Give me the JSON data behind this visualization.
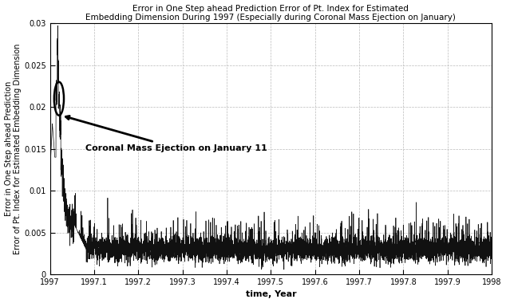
{
  "title_line1": "Error in One Step ahead Prediction Error of Pt. Index for Estimated",
  "title_line2": "Embedding Dimension During 1997 (Especially during Coronal Mass Ejection on January)",
  "xlabel": "time, Year",
  "ylabel_line1": "Error in One Step ahead Prediction",
  "ylabel_line2": "Error of Pt. Index for Estimated Embedding Dimension",
  "xlim": [
    1997.0,
    1998.0
  ],
  "ylim": [
    0,
    0.03
  ],
  "yticks": [
    0,
    0.005,
    0.01,
    0.015,
    0.02,
    0.025,
    0.03
  ],
  "ytick_labels": [
    "0",
    "0.005",
    "0.01",
    "0.015",
    "0.02",
    "0.025",
    "0.03"
  ],
  "xticks": [
    1997.0,
    1997.1,
    1997.2,
    1997.3,
    1997.4,
    1997.5,
    1997.6,
    1997.7,
    1997.8,
    1997.9,
    1998.0
  ],
  "xtick_labels": [
    "1997",
    "1997.1",
    "1997.2",
    "1997.3",
    "1997.4",
    "1997.5",
    "1997.6",
    "1997.7",
    "1997.8",
    "1997.9",
    "1998"
  ],
  "annotation_text": "Coronal Mass Ejection on January 11",
  "line_color": "#111111",
  "background_color": "#ffffff",
  "grid_color": "#bbbbbb",
  "title_fontsize": 7.5,
  "label_fontsize": 8,
  "tick_fontsize": 7,
  "annot_fontsize": 8
}
